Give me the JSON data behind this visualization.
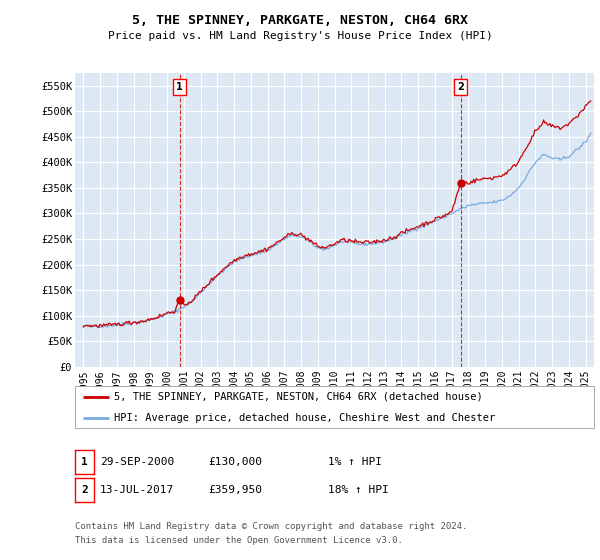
{
  "title": "5, THE SPINNEY, PARKGATE, NESTON, CH64 6RX",
  "subtitle": "Price paid vs. HM Land Registry's House Price Index (HPI)",
  "ylabel_ticks": [
    "£0",
    "£50K",
    "£100K",
    "£150K",
    "£200K",
    "£250K",
    "£300K",
    "£350K",
    "£400K",
    "£450K",
    "£500K",
    "£550K"
  ],
  "ytick_values": [
    0,
    50000,
    100000,
    150000,
    200000,
    250000,
    300000,
    350000,
    400000,
    450000,
    500000,
    550000
  ],
  "ylim": [
    0,
    575000
  ],
  "xlim_start": 1994.5,
  "xlim_end": 2025.5,
  "background_color": "#ffffff",
  "plot_background": "#dce9f5",
  "grid_color": "#ffffff",
  "legend_label_red": "5, THE SPINNEY, PARKGATE, NESTON, CH64 6RX (detached house)",
  "legend_label_blue": "HPI: Average price, detached house, Cheshire West and Chester",
  "sale1_date": "29-SEP-2000",
  "sale1_price": 130000,
  "sale1_hpi": "1%",
  "sale1_label": "1",
  "sale1_x": 2000.75,
  "sale2_date": "13-JUL-2017",
  "sale2_price": 359950,
  "sale2_hpi": "18%",
  "sale2_label": "2",
  "sale2_x": 2017.54,
  "footnote1": "Contains HM Land Registry data © Crown copyright and database right 2024.",
  "footnote2": "This data is licensed under the Open Government Licence v3.0.",
  "red_color": "#cc0000",
  "blue_color": "#7aabe0",
  "price_paid_1": 130000,
  "price_paid_2": 359950,
  "xtick_years": [
    "1995",
    "1996",
    "1997",
    "1998",
    "1999",
    "2000",
    "2001",
    "2002",
    "2003",
    "2004",
    "2005",
    "2006",
    "2007",
    "2008",
    "2009",
    "2010",
    "2011",
    "2012",
    "2013",
    "2014",
    "2015",
    "2016",
    "2017",
    "2018",
    "2019",
    "2020",
    "2021",
    "2022",
    "2023",
    "2024",
    "2025"
  ]
}
